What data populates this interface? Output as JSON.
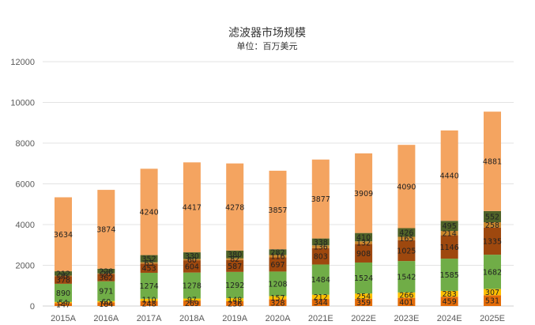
{
  "title": "滤波器市场规模",
  "subtitle": "单位：百万美元",
  "chart_data": {
    "type": "bar",
    "stacked": true,
    "title": "滤波器市场规模",
    "subtitle": "单位：百万美元",
    "xlabel": "",
    "ylabel": "",
    "ylim": [
      0,
      12000
    ],
    "yticks": [
      0,
      2000,
      4000,
      6000,
      8000,
      10000,
      12000
    ],
    "grid": true,
    "legend": "none",
    "categories": [
      "2015A",
      "2016A",
      "2017A",
      "2018A",
      "2019A",
      "2020A",
      "2021E",
      "2022E",
      "2023E",
      "2024E",
      "2025E"
    ],
    "series": [
      {
        "color": "#e36c09",
        "values": [
          147,
          184,
          248,
          269,
          236,
          328,
          344,
          359,
          401,
          459,
          531
        ]
      },
      {
        "color": "#ffc000",
        "values": [
          54,
          60,
          110,
          97,
          148,
          157,
          212,
          254,
          266,
          283,
          307
        ]
      },
      {
        "color": "#70ad47",
        "values": [
          890,
          971,
          1274,
          1278,
          1292,
          1208,
          1484,
          1524,
          1542,
          1585,
          1682
        ]
      },
      {
        "color": "#9e480e",
        "values": [
          378,
          362,
          453,
          604,
          587,
          697,
          803,
          908,
          1025,
          1146,
          1335
        ]
      },
      {
        "color": "#c9862b",
        "values": [
          25,
          26,
          65,
          60,
          82,
          116,
          136,
          132,
          165,
          214,
          258
        ]
      },
      {
        "color": "#4f6228",
        "values": [
          212,
          228,
          352,
          330,
          380,
          282,
          338,
          410,
          426,
          495,
          552
        ]
      },
      {
        "color": "#f4a460",
        "values": [
          3634,
          3874,
          4240,
          4417,
          4278,
          3857,
          3877,
          3909,
          4090,
          4440,
          4881
        ]
      }
    ]
  }
}
